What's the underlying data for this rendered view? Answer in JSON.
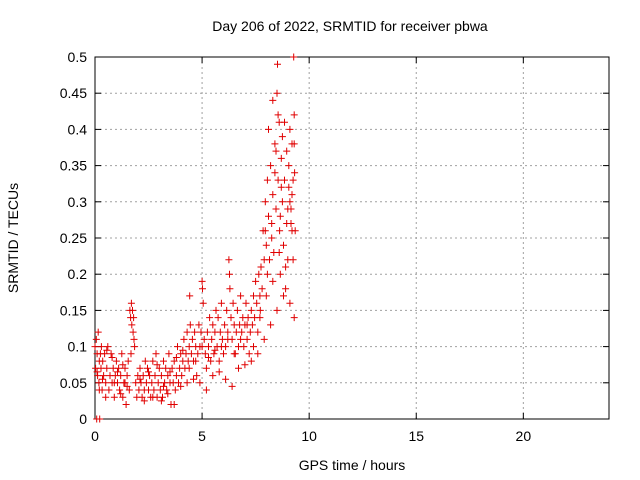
{
  "chart_data": {
    "type": "scatter",
    "title": "Day 206 of 2022, SRMTID for receiver pbwa",
    "xlabel": "GPS time / hours",
    "ylabel": "SRMTID / TECUs",
    "xlim": [
      0,
      24
    ],
    "ylim": [
      0,
      0.5
    ],
    "xticks": [
      0,
      5,
      10,
      15,
      20
    ],
    "xtick_labels": [
      "0",
      "5",
      "10",
      "15",
      "20"
    ],
    "yticks": [
      0,
      0.05,
      0.1,
      0.15,
      0.2,
      0.25,
      0.3,
      0.35,
      0.4,
      0.45,
      0.5
    ],
    "ytick_labels": [
      "0",
      "0.05",
      "0.1",
      "0.15",
      "0.2",
      "0.25",
      "0.3",
      "0.35",
      "0.4",
      "0.45",
      "0.5"
    ],
    "grid": true,
    "marker": "+",
    "marker_color": "#e00000",
    "grid_color": "#a0a0a0",
    "series": [
      {
        "name": "SRMTID",
        "points": [
          [
            0.0,
            0.1
          ],
          [
            0.03,
            0.07
          ],
          [
            0.06,
            0.11
          ],
          [
            0.08,
            0.0
          ],
          [
            0.1,
            0.09
          ],
          [
            0.12,
            0.06
          ],
          [
            0.15,
            0.12
          ],
          [
            0.18,
            0.05
          ],
          [
            0.2,
            0.08
          ],
          [
            0.22,
            0.0
          ],
          [
            0.25,
            0.09
          ],
          [
            0.28,
            0.07
          ],
          [
            0.3,
            0.1
          ],
          [
            0.33,
            0.04
          ],
          [
            0.36,
            0.08
          ],
          [
            0.4,
            0.06
          ],
          [
            0.45,
            0.09
          ],
          [
            0.5,
            0.05
          ],
          [
            0.55,
            0.07
          ],
          [
            0.6,
            0.1
          ],
          [
            0.65,
            0.04
          ],
          [
            0.7,
            0.06
          ],
          [
            0.75,
            0.09
          ],
          [
            0.8,
            0.05
          ],
          [
            0.85,
            0.07
          ],
          [
            0.9,
            0.03
          ],
          [
            0.95,
            0.06
          ],
          [
            1.0,
            0.08
          ],
          [
            1.05,
            0.05
          ],
          [
            1.1,
            0.07
          ],
          [
            1.15,
            0.04
          ],
          [
            1.2,
            0.06
          ],
          [
            1.25,
            0.09
          ],
          [
            1.3,
            0.03
          ],
          [
            1.35,
            0.05
          ],
          [
            1.4,
            0.07
          ],
          [
            1.45,
            0.02
          ],
          [
            1.5,
            0.06
          ],
          [
            1.55,
            0.08
          ],
          [
            1.6,
            0.04
          ],
          [
            1.63,
            0.15
          ],
          [
            1.66,
            0.14
          ],
          [
            1.7,
            0.16
          ],
          [
            1.72,
            0.13
          ],
          [
            1.75,
            0.15
          ],
          [
            1.78,
            0.12
          ],
          [
            1.8,
            0.14
          ],
          [
            1.82,
            0.11
          ],
          [
            1.85,
            0.1
          ],
          [
            1.68,
            0.09
          ],
          [
            1.9,
            0.05
          ],
          [
            1.95,
            0.03
          ],
          [
            2.0,
            0.06
          ],
          [
            2.05,
            0.04
          ],
          [
            2.1,
            0.07
          ],
          [
            2.15,
            0.05
          ],
          [
            2.2,
            0.03
          ],
          [
            2.25,
            0.06
          ],
          [
            2.3,
            0.04
          ],
          [
            2.35,
            0.08
          ],
          [
            2.4,
            0.05
          ],
          [
            2.45,
            0.07
          ],
          [
            2.5,
            0.04
          ],
          [
            2.55,
            0.06
          ],
          [
            2.6,
            0.03
          ],
          [
            2.65,
            0.05
          ],
          [
            2.7,
            0.08
          ],
          [
            2.75,
            0.04
          ],
          [
            2.8,
            0.06
          ],
          [
            2.85,
            0.09
          ],
          [
            2.9,
            0.03
          ],
          [
            2.95,
            0.05
          ],
          [
            3.0,
            0.07
          ],
          [
            3.05,
            0.04
          ],
          [
            3.1,
            0.06
          ],
          [
            3.15,
            0.03
          ],
          [
            3.2,
            0.08
          ],
          [
            3.25,
            0.05
          ],
          [
            3.3,
            0.07
          ],
          [
            3.35,
            0.04
          ],
          [
            3.4,
            0.06
          ],
          [
            3.45,
            0.09
          ],
          [
            3.5,
            0.05
          ],
          [
            3.55,
            0.02
          ],
          [
            3.6,
            0.07
          ],
          [
            3.65,
            0.05
          ],
          [
            3.7,
            0.08
          ],
          [
            3.75,
            0.04
          ],
          [
            3.8,
            0.06
          ],
          [
            3.85,
            0.1
          ],
          [
            3.9,
            0.05
          ],
          [
            3.95,
            0.07
          ],
          [
            4.0,
            0.09
          ],
          [
            4.05,
            0.06
          ],
          [
            4.1,
            0.08
          ],
          [
            4.15,
            0.11
          ],
          [
            4.2,
            0.07
          ],
          [
            4.25,
            0.09
          ],
          [
            4.3,
            0.12
          ],
          [
            4.35,
            0.08
          ],
          [
            4.4,
            0.1
          ],
          [
            4.42,
            0.17
          ],
          [
            4.45,
            0.13
          ],
          [
            4.5,
            0.09
          ],
          [
            4.55,
            0.11
          ],
          [
            4.6,
            0.08
          ],
          [
            4.65,
            0.12
          ],
          [
            4.7,
            0.1
          ],
          [
            4.75,
            0.06
          ],
          [
            4.8,
            0.09
          ],
          [
            4.85,
            0.13
          ],
          [
            4.9,
            0.1
          ],
          [
            4.95,
            0.12
          ],
          [
            5.0,
            0.19
          ],
          [
            5.02,
            0.18
          ],
          [
            5.05,
            0.16
          ],
          [
            5.1,
            0.11
          ],
          [
            5.15,
            0.09
          ],
          [
            5.2,
            0.07
          ],
          [
            5.25,
            0.12
          ],
          [
            5.3,
            0.1
          ],
          [
            5.35,
            0.14
          ],
          [
            5.4,
            0.08
          ],
          [
            5.45,
            0.11
          ],
          [
            5.5,
            0.13
          ],
          [
            5.55,
            0.09
          ],
          [
            5.6,
            0.12
          ],
          [
            5.65,
            0.15
          ],
          [
            5.7,
            0.1
          ],
          [
            5.75,
            0.14
          ],
          [
            5.8,
            0.08
          ],
          [
            5.85,
            0.12
          ],
          [
            5.9,
            0.16
          ],
          [
            5.95,
            0.11
          ],
          [
            6.0,
            0.09
          ],
          [
            6.05,
            0.13
          ],
          [
            6.1,
            0.1
          ],
          [
            6.15,
            0.15
          ],
          [
            6.2,
            0.12
          ],
          [
            6.25,
            0.22
          ],
          [
            6.28,
            0.2
          ],
          [
            6.3,
            0.18
          ],
          [
            6.35,
            0.14
          ],
          [
            6.4,
            0.11
          ],
          [
            6.45,
            0.16
          ],
          [
            6.5,
            0.13
          ],
          [
            6.55,
            0.09
          ],
          [
            6.6,
            0.12
          ],
          [
            6.65,
            0.15
          ],
          [
            6.7,
            0.1
          ],
          [
            6.75,
            0.13
          ],
          [
            6.8,
            0.17
          ],
          [
            6.85,
            0.12
          ],
          [
            6.9,
            0.14
          ],
          [
            6.95,
            0.1
          ],
          [
            7.0,
            0.13
          ],
          [
            7.05,
            0.16
          ],
          [
            7.1,
            0.11
          ],
          [
            7.15,
            0.14
          ],
          [
            7.2,
            0.09
          ],
          [
            7.25,
            0.12
          ],
          [
            7.3,
            0.15
          ],
          [
            7.35,
            0.13
          ],
          [
            7.4,
            0.17
          ],
          [
            7.45,
            0.14
          ],
          [
            7.5,
            0.19
          ],
          [
            7.55,
            0.16
          ],
          [
            7.6,
            0.12
          ],
          [
            7.65,
            0.2
          ],
          [
            7.7,
            0.17
          ],
          [
            7.72,
            0.15
          ],
          [
            7.75,
            0.21
          ],
          [
            7.8,
            0.18
          ],
          [
            7.85,
            0.26
          ],
          [
            7.9,
            0.22
          ],
          [
            7.95,
            0.3
          ],
          [
            8.0,
            0.24
          ],
          [
            8.05,
            0.2
          ],
          [
            8.1,
            0.28
          ],
          [
            8.15,
            0.22
          ],
          [
            8.2,
            0.35
          ],
          [
            8.25,
            0.27
          ],
          [
            8.3,
            0.31
          ],
          [
            8.35,
            0.23
          ],
          [
            8.4,
            0.38
          ],
          [
            8.45,
            0.29
          ],
          [
            8.5,
            0.45
          ],
          [
            8.52,
            0.49
          ],
          [
            8.55,
            0.33
          ],
          [
            8.6,
            0.41
          ],
          [
            8.62,
            0.26
          ],
          [
            8.65,
            0.2
          ],
          [
            8.7,
            0.36
          ],
          [
            8.75,
            0.3
          ],
          [
            8.8,
            0.24
          ],
          [
            8.85,
            0.33
          ],
          [
            8.9,
            0.18
          ],
          [
            8.95,
            0.27
          ],
          [
            9.0,
            0.22
          ],
          [
            9.05,
            0.32
          ],
          [
            9.1,
            0.4
          ],
          [
            9.15,
            0.29
          ],
          [
            9.2,
            0.38
          ],
          [
            9.25,
            0.22
          ],
          [
            9.28,
            0.5
          ],
          [
            9.3,
            0.42
          ],
          [
            9.32,
            0.34
          ],
          [
            9.35,
            0.26
          ],
          [
            0.1,
            0.065
          ],
          [
            0.35,
            0.055
          ],
          [
            0.55,
            0.095
          ],
          [
            0.8,
            0.085
          ],
          [
            1.05,
            0.065
          ],
          [
            1.3,
            0.075
          ],
          [
            1.5,
            0.045
          ],
          [
            2.1,
            0.055
          ],
          [
            2.5,
            0.065
          ],
          [
            2.9,
            0.075
          ],
          [
            3.2,
            0.045
          ],
          [
            3.5,
            0.065
          ],
          [
            3.8,
            0.085
          ],
          [
            4.1,
            0.095
          ],
          [
            4.4,
            0.07
          ],
          [
            4.7,
            0.08
          ],
          [
            5.0,
            0.1
          ],
          [
            5.3,
            0.085
          ],
          [
            5.6,
            0.095
          ],
          [
            5.9,
            0.1
          ],
          [
            6.2,
            0.11
          ],
          [
            6.5,
            0.09
          ],
          [
            6.8,
            0.11
          ],
          [
            7.1,
            0.13
          ],
          [
            7.4,
            0.1
          ],
          [
            7.7,
            0.14
          ],
          [
            8.0,
            0.17
          ],
          [
            8.3,
            0.19
          ],
          [
            8.6,
            0.23
          ],
          [
            8.9,
            0.21
          ],
          [
            9.2,
            0.26
          ],
          [
            0.2,
            0.04
          ],
          [
            0.5,
            0.03
          ],
          [
            0.9,
            0.05
          ],
          [
            1.2,
            0.035
          ],
          [
            1.4,
            0.05
          ],
          [
            2.3,
            0.025
          ],
          [
            2.7,
            0.03
          ],
          [
            3.1,
            0.025
          ],
          [
            3.4,
            0.035
          ],
          [
            3.7,
            0.02
          ],
          [
            4.0,
            0.045
          ],
          [
            4.3,
            0.05
          ],
          [
            4.6,
            0.055
          ],
          [
            4.9,
            0.05
          ],
          [
            5.2,
            0.04
          ],
          [
            5.5,
            0.06
          ],
          [
            5.8,
            0.065
          ],
          [
            6.1,
            0.055
          ],
          [
            6.4,
            0.045
          ],
          [
            6.7,
            0.07
          ],
          [
            7.0,
            0.075
          ],
          [
            7.3,
            0.08
          ],
          [
            7.6,
            0.09
          ],
          [
            7.9,
            0.11
          ],
          [
            8.2,
            0.13
          ],
          [
            8.5,
            0.15
          ],
          [
            8.8,
            0.17
          ],
          [
            9.1,
            0.16
          ],
          [
            9.3,
            0.14
          ],
          [
            8.1,
            0.4
          ],
          [
            8.3,
            0.44
          ],
          [
            8.45,
            0.37
          ],
          [
            8.75,
            0.39
          ],
          [
            9.05,
            0.35
          ],
          [
            9.2,
            0.31
          ],
          [
            8.25,
            0.25
          ],
          [
            8.65,
            0.28
          ],
          [
            9.0,
            0.29
          ],
          [
            9.25,
            0.33
          ],
          [
            8.55,
            0.42
          ],
          [
            8.95,
            0.37
          ],
          [
            8.4,
            0.34
          ],
          [
            8.7,
            0.32
          ],
          [
            9.15,
            0.27
          ],
          [
            8.05,
            0.33
          ],
          [
            7.95,
            0.26
          ],
          [
            8.85,
            0.41
          ],
          [
            9.1,
            0.3
          ],
          [
            9.3,
            0.38
          ]
        ]
      }
    ]
  }
}
